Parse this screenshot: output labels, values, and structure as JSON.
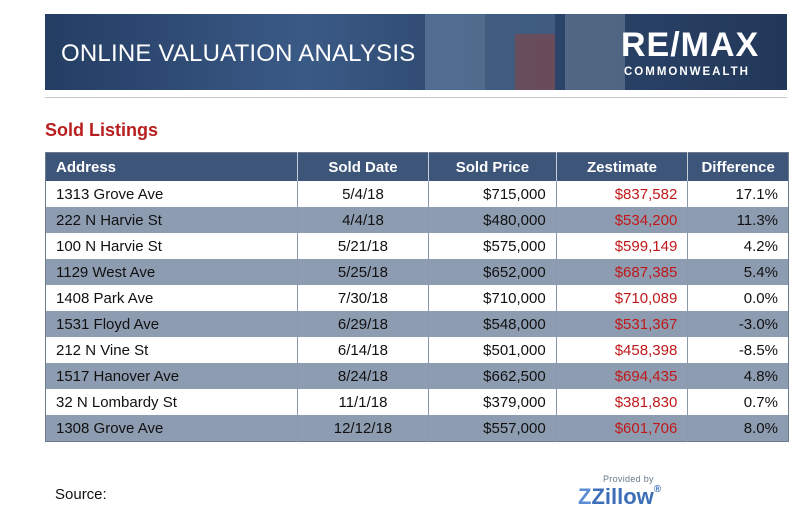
{
  "banner": {
    "title": "ONLINE VALUATION ANALYSIS",
    "logo_main": "RE/MAX",
    "logo_sub": "COMMONWEALTH"
  },
  "section_title": "Sold Listings",
  "table": {
    "headers": [
      "Address",
      "Sold Date",
      "Sold Price",
      "Zestimate",
      "Difference"
    ],
    "rows": [
      {
        "address": "1313 Grove Ave",
        "sold_date": "5/4/18",
        "sold_price": "$715,000",
        "zestimate": "$837,582",
        "difference": "17.1%"
      },
      {
        "address": "222 N Harvie St",
        "sold_date": "4/4/18",
        "sold_price": "$480,000",
        "zestimate": "$534,200",
        "difference": "11.3%"
      },
      {
        "address": "100 N Harvie St",
        "sold_date": "5/21/18",
        "sold_price": "$575,000",
        "zestimate": "$599,149",
        "difference": "4.2%"
      },
      {
        "address": "1129 West Ave",
        "sold_date": "5/25/18",
        "sold_price": "$652,000",
        "zestimate": "$687,385",
        "difference": "5.4%"
      },
      {
        "address": "1408 Park Ave",
        "sold_date": "7/30/18",
        "sold_price": "$710,000",
        "zestimate": "$710,089",
        "difference": "0.0%"
      },
      {
        "address": "1531 Floyd Ave",
        "sold_date": "6/29/18",
        "sold_price": "$548,000",
        "zestimate": "$531,367",
        "difference": "-3.0%"
      },
      {
        "address": "212 N Vine St",
        "sold_date": "6/14/18",
        "sold_price": "$501,000",
        "zestimate": "$458,398",
        "difference": "-8.5%"
      },
      {
        "address": "1517 Hanover Ave",
        "sold_date": "8/24/18",
        "sold_price": "$662,500",
        "zestimate": "$694,435",
        "difference": "4.8%"
      },
      {
        "address": "32 N Lombardy St",
        "sold_date": "11/1/18",
        "sold_price": "$379,000",
        "zestimate": "$381,830",
        "difference": "0.7%"
      },
      {
        "address": "1308 Grove Ave",
        "sold_date": "12/12/18",
        "sold_price": "$557,000",
        "zestimate": "$601,706",
        "difference": "8.0%"
      }
    ]
  },
  "footer": {
    "source_label": "Source:",
    "provided_by": "Provided by",
    "zillow_text": "Zillow",
    "zillow_mark": "®"
  },
  "colors": {
    "header_bg": "#3d5579",
    "shaded_row": "#8e9cb1",
    "accent_red": "#b81e1e",
    "zestimate_red": "#c01818",
    "zillow_blue": "#3d6fb8"
  }
}
